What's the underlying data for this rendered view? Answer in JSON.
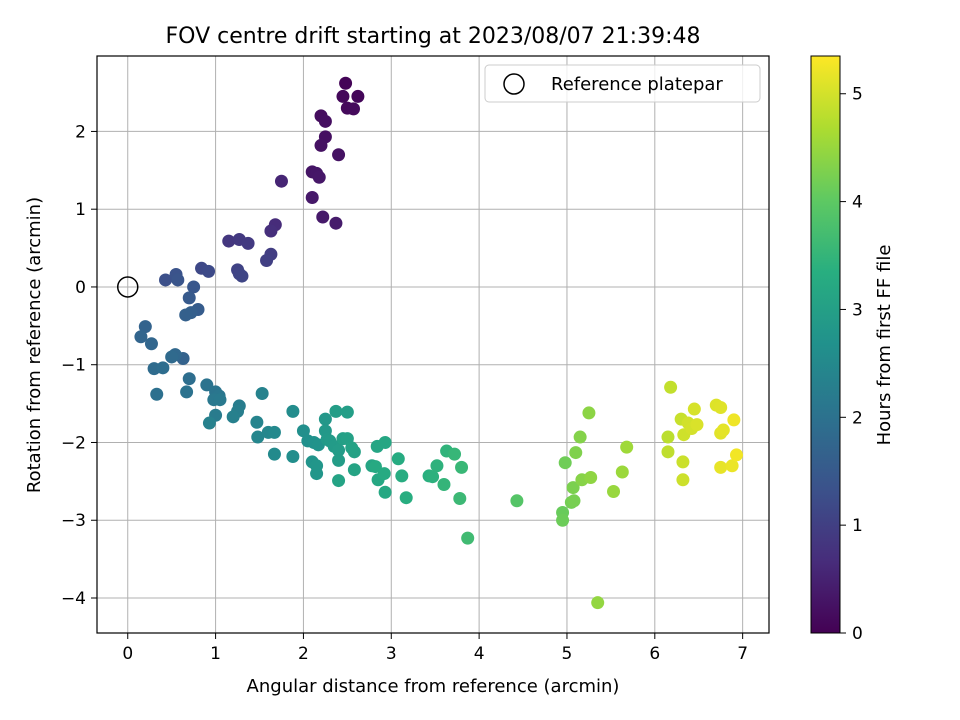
{
  "chart_data": {
    "type": "scatter",
    "title": "FOV centre drift starting at 2023/08/07 21:39:48",
    "xlabel": "Angular distance from reference (arcmin)",
    "ylabel": "Rotation from reference (arcmin)",
    "xlim": [
      -0.35,
      7.3
    ],
    "ylim": [
      -4.45,
      2.97
    ],
    "xticks": [
      0,
      1,
      2,
      3,
      4,
      5,
      6,
      7
    ],
    "xtick_labels": [
      "0",
      "1",
      "2",
      "3",
      "4",
      "5",
      "6",
      "7"
    ],
    "yticks": [
      -4,
      -3,
      -2,
      -1,
      0,
      1,
      2
    ],
    "ytick_labels": [
      "−4",
      "−3",
      "−2",
      "−1",
      "0",
      "1",
      "2"
    ],
    "grid": true,
    "legend": {
      "position": "top-right",
      "entries": [
        "Reference platepar"
      ]
    },
    "reference_point": {
      "x": 0,
      "y": 0,
      "label": "Reference platepar"
    },
    "colorbar": {
      "label": "Hours from first FF file",
      "range": [
        0,
        5.35
      ],
      "ticks": [
        0,
        1,
        2,
        3,
        4,
        5
      ],
      "tick_labels": [
        "0",
        "1",
        "2",
        "3",
        "4",
        "5"
      ],
      "colormap": "viridis"
    },
    "points": [
      [
        2.48,
        2.62,
        0.05
      ],
      [
        2.62,
        2.45,
        0.08
      ],
      [
        2.45,
        2.45,
        0.1
      ],
      [
        2.5,
        2.3,
        0.12
      ],
      [
        2.57,
        2.29,
        0.14
      ],
      [
        2.2,
        2.2,
        0.18
      ],
      [
        2.25,
        2.13,
        0.2
      ],
      [
        2.25,
        1.93,
        0.22
      ],
      [
        2.2,
        1.82,
        0.24
      ],
      [
        2.4,
        1.7,
        0.26
      ],
      [
        2.1,
        1.48,
        0.3
      ],
      [
        2.15,
        1.46,
        0.32
      ],
      [
        2.18,
        1.41,
        0.34
      ],
      [
        2.1,
        1.15,
        0.36
      ],
      [
        2.22,
        0.9,
        0.38
      ],
      [
        2.37,
        0.82,
        0.4
      ],
      [
        1.75,
        1.36,
        0.55
      ],
      [
        1.68,
        0.8,
        0.65
      ],
      [
        1.63,
        0.72,
        0.7
      ],
      [
        1.15,
        0.59,
        0.85
      ],
      [
        1.27,
        0.61,
        0.88
      ],
      [
        1.37,
        0.56,
        0.9
      ],
      [
        1.63,
        0.42,
        0.95
      ],
      [
        1.58,
        0.34,
        1.0
      ],
      [
        1.25,
        0.22,
        1.05
      ],
      [
        1.27,
        0.17,
        1.08
      ],
      [
        1.3,
        0.14,
        1.1
      ],
      [
        0.84,
        0.24,
        1.15
      ],
      [
        0.92,
        0.2,
        1.2
      ],
      [
        0.43,
        0.09,
        1.3
      ],
      [
        0.55,
        0.16,
        1.35
      ],
      [
        0.57,
        0.09,
        1.4
      ],
      [
        0.75,
        0.0,
        1.45
      ],
      [
        0.7,
        -0.14,
        1.5
      ],
      [
        0.8,
        -0.29,
        1.55
      ],
      [
        0.72,
        -0.33,
        1.6
      ],
      [
        0.66,
        -0.36,
        1.63
      ],
      [
        0.63,
        -0.92,
        1.67
      ],
      [
        0.2,
        -0.51,
        1.7
      ],
      [
        0.15,
        -0.64,
        1.73
      ],
      [
        0.27,
        -0.73,
        1.76
      ],
      [
        0.54,
        -0.87,
        1.8
      ],
      [
        0.5,
        -0.9,
        1.83
      ],
      [
        0.3,
        -1.05,
        1.86
      ],
      [
        0.4,
        -1.04,
        1.9
      ],
      [
        0.7,
        -1.18,
        1.93
      ],
      [
        0.33,
        -1.38,
        1.96
      ],
      [
        0.67,
        -1.35,
        2.0
      ],
      [
        0.9,
        -1.26,
        2.03
      ],
      [
        1.0,
        -1.35,
        2.06
      ],
      [
        1.04,
        -1.4,
        2.1
      ],
      [
        0.98,
        -1.45,
        2.13
      ],
      [
        1.05,
        -1.45,
        2.16
      ],
      [
        1.0,
        -1.65,
        2.2
      ],
      [
        1.27,
        -1.53,
        2.23
      ],
      [
        1.25,
        -1.6,
        2.26
      ],
      [
        1.2,
        -1.67,
        2.3
      ],
      [
        0.93,
        -1.75,
        2.33
      ],
      [
        1.53,
        -1.37,
        2.36
      ],
      [
        1.47,
        -1.74,
        2.4
      ],
      [
        1.48,
        -1.93,
        2.43
      ],
      [
        1.6,
        -1.87,
        2.46
      ],
      [
        1.67,
        -1.87,
        2.5
      ],
      [
        1.67,
        -2.15,
        2.53
      ],
      [
        1.88,
        -1.6,
        2.56
      ],
      [
        1.88,
        -2.18,
        2.6
      ],
      [
        2.0,
        -1.85,
        2.63
      ],
      [
        2.05,
        -1.98,
        2.66
      ],
      [
        2.12,
        -2.0,
        2.7
      ],
      [
        2.17,
        -2.03,
        2.72
      ],
      [
        2.1,
        -2.25,
        2.75
      ],
      [
        2.15,
        -2.3,
        2.78
      ],
      [
        2.15,
        -2.4,
        2.8
      ],
      [
        2.25,
        -1.7,
        2.82
      ],
      [
        2.25,
        -1.85,
        2.84
      ],
      [
        2.27,
        -1.96,
        2.86
      ],
      [
        2.3,
        -1.98,
        2.88
      ],
      [
        2.35,
        -2.05,
        2.9
      ],
      [
        2.4,
        -2.1,
        2.92
      ],
      [
        2.4,
        -2.23,
        2.94
      ],
      [
        2.37,
        -1.6,
        2.96
      ],
      [
        2.5,
        -1.61,
        2.98
      ],
      [
        2.45,
        -1.95,
        3.0
      ],
      [
        2.5,
        -1.95,
        3.02
      ],
      [
        2.58,
        -2.12,
        3.04
      ],
      [
        2.55,
        -2.07,
        3.06
      ],
      [
        2.4,
        -2.49,
        3.08
      ],
      [
        2.58,
        -2.35,
        3.1
      ],
      [
        2.78,
        -2.3,
        3.12
      ],
      [
        2.84,
        -2.05,
        3.14
      ],
      [
        2.93,
        -2.0,
        3.16
      ],
      [
        2.85,
        -2.48,
        3.18
      ],
      [
        2.93,
        -2.64,
        3.2
      ],
      [
        2.82,
        -2.31,
        3.22
      ],
      [
        2.92,
        -2.4,
        3.24
      ],
      [
        3.08,
        -2.21,
        3.27
      ],
      [
        3.12,
        -2.43,
        3.3
      ],
      [
        3.17,
        -2.71,
        3.33
      ],
      [
        3.43,
        -2.43,
        3.36
      ],
      [
        3.47,
        -2.44,
        3.4
      ],
      [
        3.52,
        -2.3,
        3.43
      ],
      [
        3.63,
        -2.11,
        3.46
      ],
      [
        3.6,
        -2.54,
        3.5
      ],
      [
        3.72,
        -2.15,
        3.53
      ],
      [
        3.8,
        -2.32,
        3.56
      ],
      [
        3.78,
        -2.72,
        3.6
      ],
      [
        3.87,
        -3.23,
        3.65
      ],
      [
        4.43,
        -2.75,
        3.9
      ],
      [
        4.95,
        -2.9,
        4.1
      ],
      [
        4.95,
        -3.0,
        4.13
      ],
      [
        4.98,
        -2.26,
        4.16
      ],
      [
        5.05,
        -2.77,
        4.2
      ],
      [
        5.08,
        -2.75,
        4.23
      ],
      [
        5.07,
        -2.58,
        4.26
      ],
      [
        5.1,
        -2.13,
        4.3
      ],
      [
        5.15,
        -1.93,
        4.33
      ],
      [
        5.17,
        -2.48,
        4.36
      ],
      [
        5.25,
        -1.62,
        4.4
      ],
      [
        5.27,
        -2.45,
        4.43
      ],
      [
        5.35,
        -4.06,
        4.46
      ],
      [
        5.53,
        -2.63,
        4.5
      ],
      [
        5.63,
        -2.38,
        4.53
      ],
      [
        5.68,
        -2.06,
        4.56
      ],
      [
        6.15,
        -1.93,
        4.8
      ],
      [
        6.15,
        -2.12,
        4.83
      ],
      [
        6.18,
        -1.29,
        4.86
      ],
      [
        6.3,
        -1.7,
        4.9
      ],
      [
        6.32,
        -2.25,
        4.92
      ],
      [
        6.32,
        -2.48,
        4.94
      ],
      [
        6.33,
        -1.9,
        4.96
      ],
      [
        6.38,
        -1.75,
        4.98
      ],
      [
        6.42,
        -1.82,
        5.0
      ],
      [
        6.45,
        -1.57,
        5.02
      ],
      [
        6.48,
        -1.77,
        5.05
      ],
      [
        6.7,
        -1.52,
        5.08
      ],
      [
        6.75,
        -1.55,
        5.1
      ],
      [
        6.75,
        -1.88,
        5.12
      ],
      [
        6.78,
        -1.84,
        5.14
      ],
      [
        6.75,
        -2.32,
        5.17
      ],
      [
        6.88,
        -2.3,
        5.2
      ],
      [
        6.9,
        -1.71,
        5.23
      ],
      [
        6.93,
        -2.16,
        5.26
      ]
    ]
  }
}
